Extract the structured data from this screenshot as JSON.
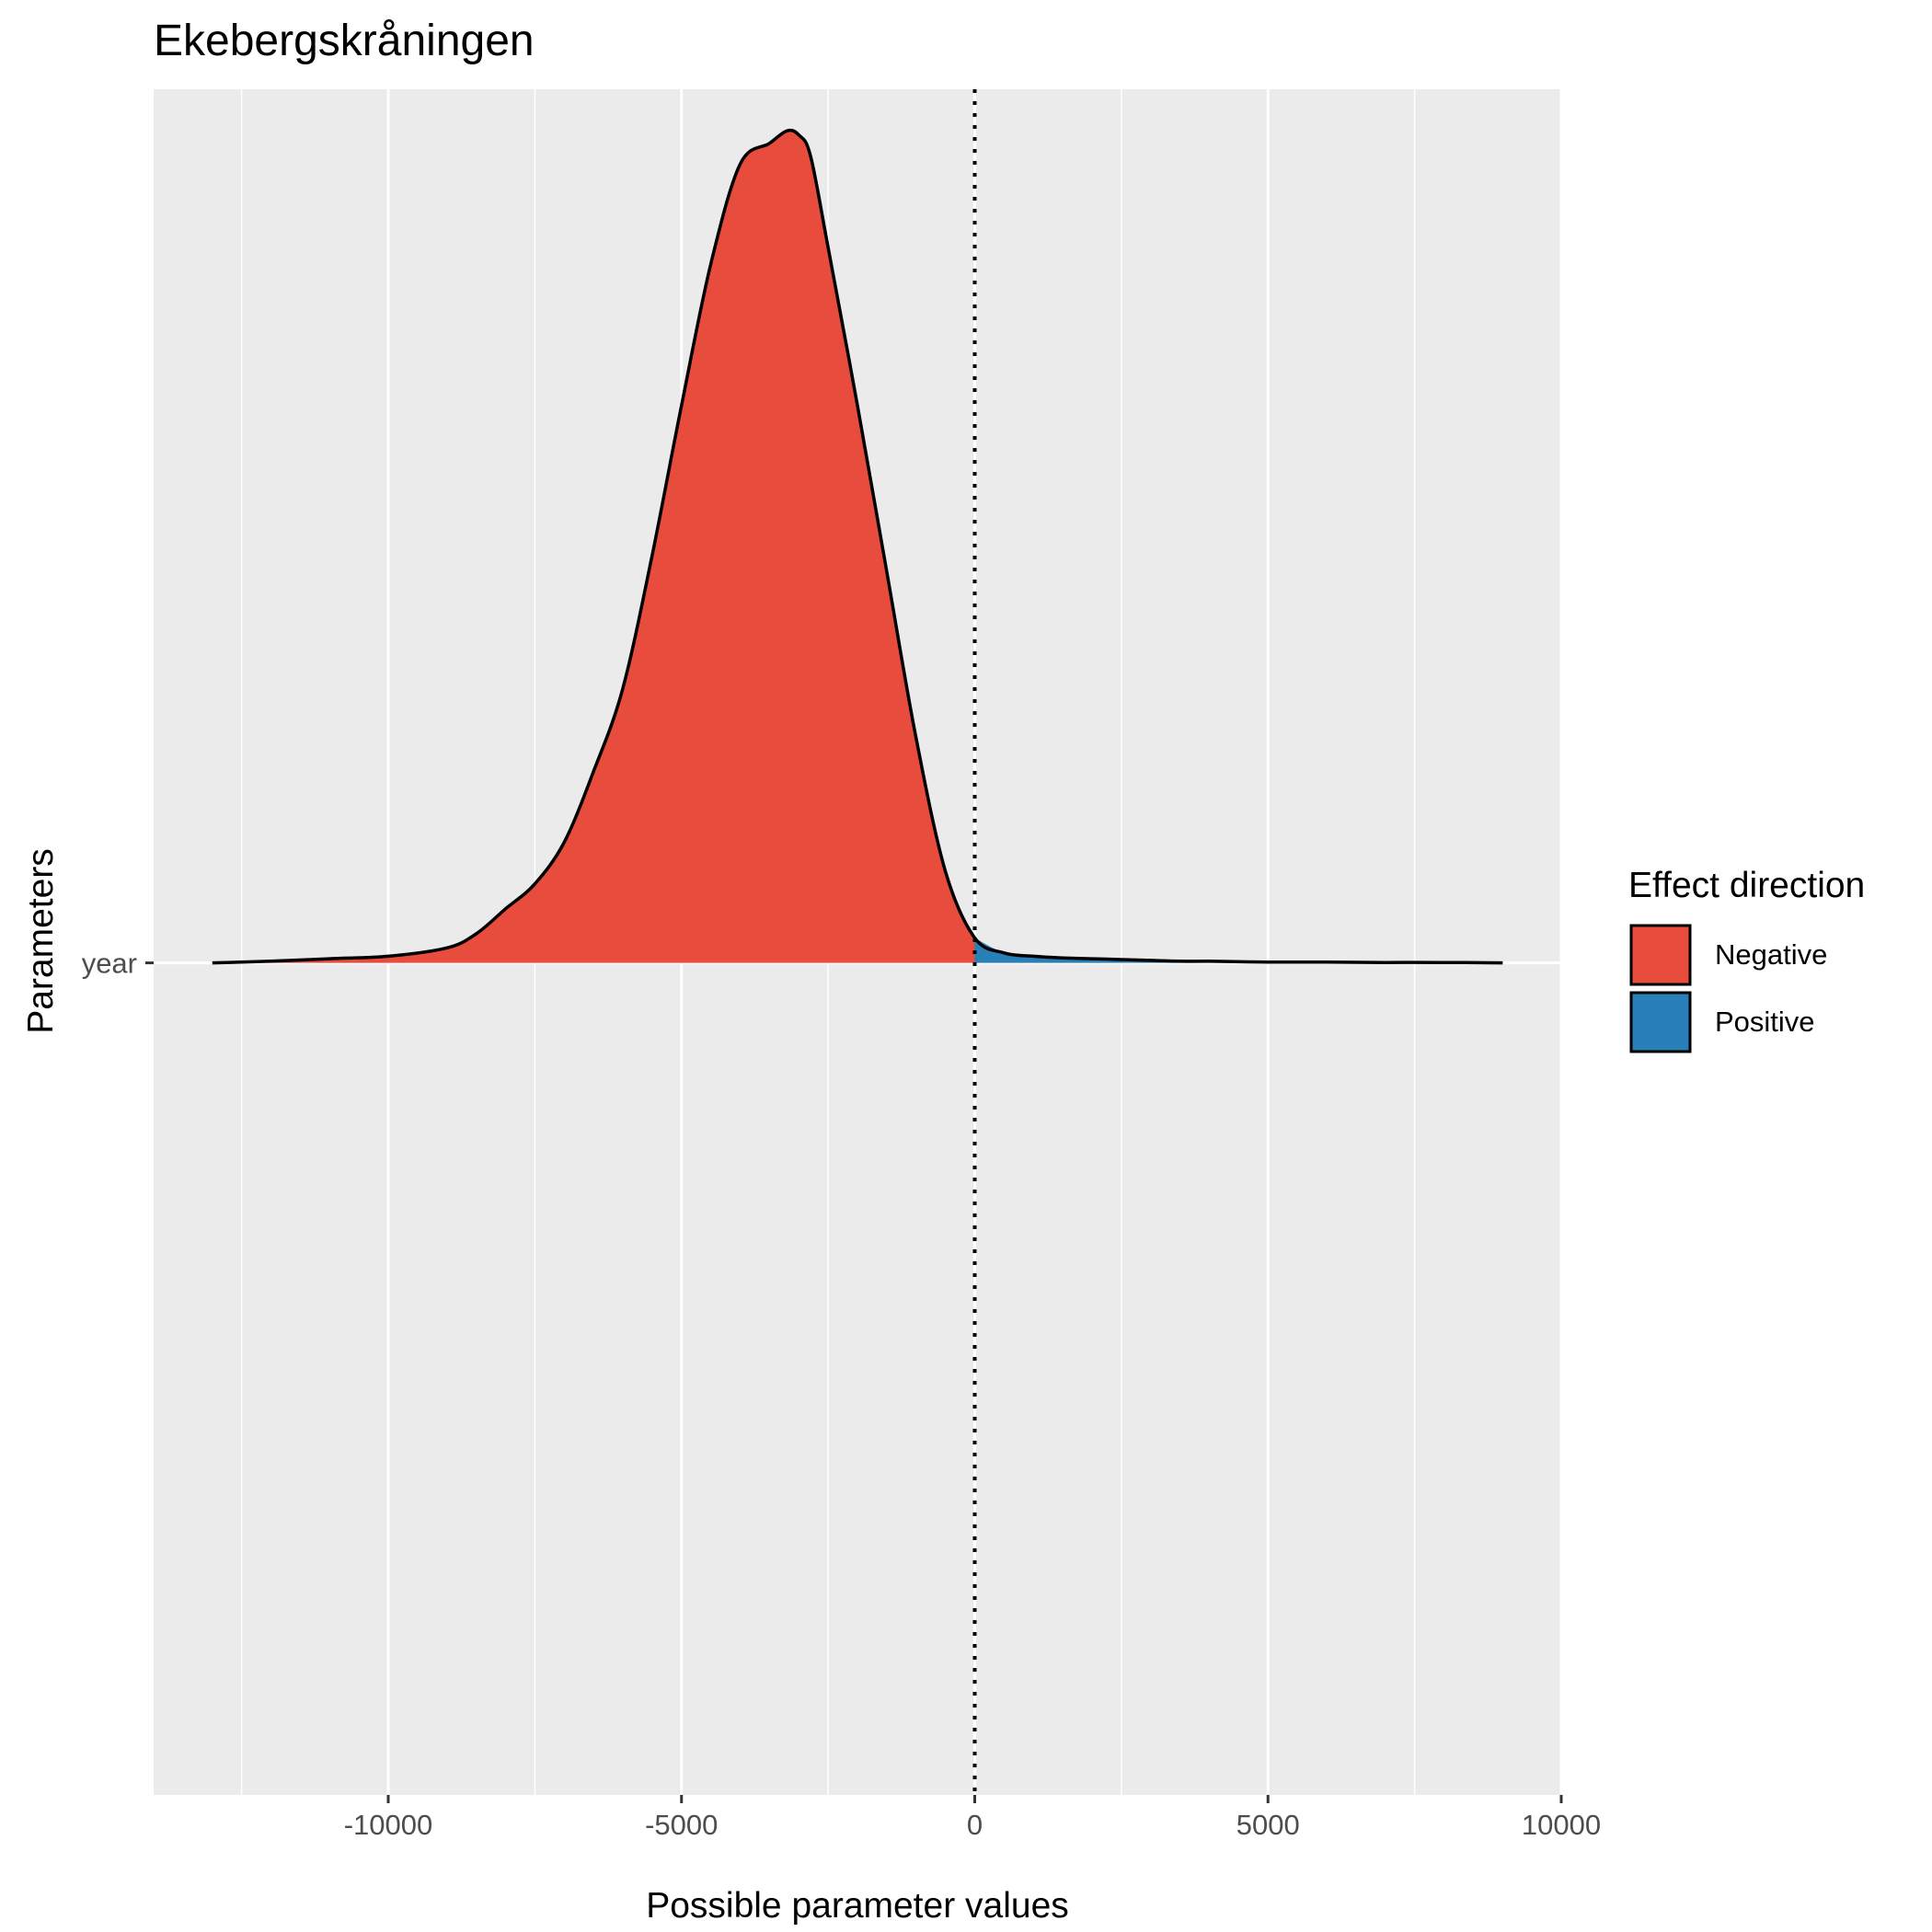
{
  "chart_data": {
    "type": "area",
    "title": "Ekebergskråningen",
    "xlabel": "Possible parameter values",
    "ylabel": "Parameters",
    "xlim": [
      -14000,
      10000
    ],
    "ylim": [
      -1,
      1.05
    ],
    "x_ticks": [
      -10000,
      -5000,
      0,
      5000,
      10000
    ],
    "x_tick_labels": [
      "-10000",
      "-5000",
      "0",
      "5000",
      "10000"
    ],
    "y_categories": [
      "year"
    ],
    "reference_line": {
      "x": 0,
      "style": "dotted"
    },
    "grid": true,
    "legend": {
      "title": "Effect direction",
      "position": "right",
      "entries": [
        {
          "label": "Negative",
          "color": "#e74c3c"
        },
        {
          "label": "Positive",
          "color": "#2980b9"
        }
      ]
    },
    "density": {
      "category": "year",
      "x": [
        -13000,
        -12000,
        -11000,
        -10000,
        -9000,
        -8500,
        -8000,
        -7500,
        -7000,
        -6500,
        -6000,
        -5500,
        -5000,
        -4500,
        -4000,
        -3500,
        -3200,
        -3000,
        -2800,
        -2500,
        -2000,
        -1500,
        -1000,
        -500,
        0,
        500,
        1000,
        1500,
        2000,
        2500,
        3000,
        3500,
        4000,
        5000,
        6000,
        7000,
        8000,
        9000
      ],
      "y": [
        0.0,
        0.002,
        0.005,
        0.008,
        0.018,
        0.035,
        0.065,
        0.095,
        0.145,
        0.23,
        0.33,
        0.49,
        0.67,
        0.84,
        0.96,
        0.985,
        1.0,
        0.995,
        0.97,
        0.86,
        0.67,
        0.47,
        0.27,
        0.11,
        0.03,
        0.012,
        0.008,
        0.006,
        0.005,
        0.004,
        0.003,
        0.002,
        0.002,
        0.001,
        0.001,
        0.0005,
        0.0005,
        0.0
      ]
    }
  }
}
